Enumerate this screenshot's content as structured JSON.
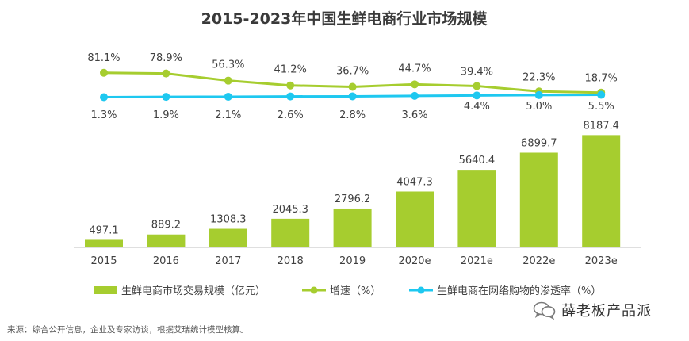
{
  "chart_data": {
    "type": "bar+line",
    "title": "2015-2023年中国生鲜电商行业市场规模",
    "categories": [
      "2015",
      "2016",
      "2017",
      "2018",
      "2019",
      "2020e",
      "2021e",
      "2022e",
      "2023e"
    ],
    "series": [
      {
        "name": "生鲜电商市场交易规模（亿元）",
        "type": "bar",
        "color": "#a6cd2f",
        "values": [
          497.1,
          889.2,
          1308.3,
          2045.3,
          2796.2,
          4047.3,
          5640.4,
          6899.7,
          8187.4
        ],
        "labels": [
          "497.1",
          "889.2",
          "1308.3",
          "2045.3",
          "2796.2",
          "4047.3",
          "5640.4",
          "6899.7",
          "8187.4"
        ]
      },
      {
        "name": "增速（%）",
        "type": "line",
        "color": "#a6cd2f",
        "values": [
          81.1,
          78.9,
          56.3,
          41.2,
          36.7,
          44.7,
          39.4,
          22.3,
          18.7
        ],
        "labels": [
          "81.1%",
          "78.9%",
          "56.3%",
          "41.2%",
          "36.7%",
          "44.7%",
          "39.4%",
          "22.3%",
          "18.7%"
        ]
      },
      {
        "name": "生鲜电商在网络购物的渗透率（%）",
        "type": "line",
        "color": "#1ec8f0",
        "values": [
          1.3,
          1.9,
          2.1,
          2.6,
          2.8,
          3.6,
          4.4,
          5.0,
          5.5
        ],
        "labels": [
          "1.3%",
          "1.9%",
          "2.1%",
          "2.6%",
          "2.8%",
          "3.6%",
          "4.4%",
          "5.0%",
          "5.5%"
        ]
      }
    ],
    "ylim_bar": [
      0,
      8500
    ],
    "legend_position": "bottom"
  },
  "source_note": "来源：综合公开信息，企业及专家访谈，根据艾瑞统计模型核算。",
  "watermark": {
    "text": "薛老板产品派",
    "icon": "wechat-icon"
  }
}
